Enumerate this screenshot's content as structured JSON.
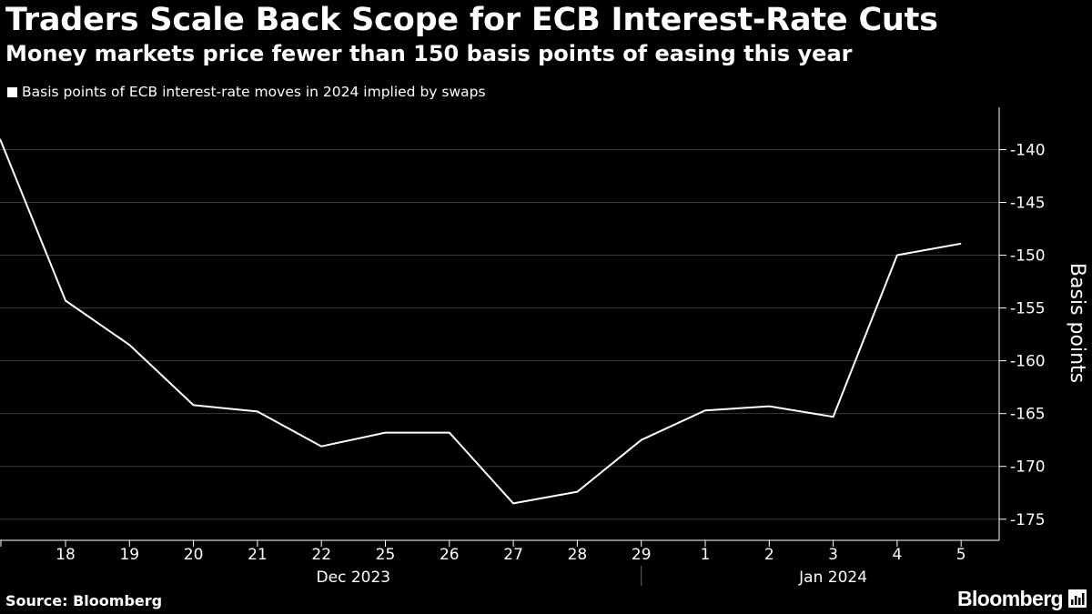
{
  "header": {
    "title": "Traders Scale Back Scope for ECB Interest-Rate Cuts",
    "subtitle": "Money markets price fewer than 150 basis points of easing this year"
  },
  "legend": {
    "label": "Basis points of ECB interest-rate moves in 2024 implied by swaps"
  },
  "footer": {
    "source": "Source: Bloomberg",
    "brand": "Bloomberg",
    "brand_icon": "chart-icon"
  },
  "colors": {
    "background": "#000000",
    "line": "#ffffff",
    "grid": "#3a3a3a",
    "text": "#ffffff"
  },
  "chart_data": {
    "type": "line",
    "title": "Traders Scale Back Scope for ECB Interest-Rate Cuts",
    "subtitle": "Money markets price fewer than 150 basis points of easing this year",
    "ylabel": "Basis points",
    "xlabel": "",
    "ylim": [
      -177,
      -136
    ],
    "yticks": [
      -140,
      -145,
      -150,
      -155,
      -160,
      -165,
      -170,
      -175
    ],
    "ytick_labels": [
      "-140",
      "-145",
      "-150",
      "-155",
      "-160",
      "-165",
      "-170",
      "-175"
    ],
    "grid": true,
    "legend_position": "top-left",
    "categories": [
      "18",
      "19",
      "20",
      "21",
      "22",
      "25",
      "26",
      "27",
      "28",
      "29",
      "1",
      "2",
      "3",
      "4",
      "5"
    ],
    "month_groups": [
      {
        "label": "Dec 2023",
        "from": 0,
        "to": 9
      },
      {
        "label": "Jan 2024",
        "from": 10,
        "to": 14
      }
    ],
    "series": [
      {
        "name": "Basis points of ECB interest-rate moves in 2024 implied by swaps",
        "start_value": -139.0,
        "values": [
          -154.3,
          -158.5,
          -164.2,
          -164.8,
          -168.1,
          -166.8,
          -166.8,
          -173.5,
          -172.4,
          -167.5,
          -164.7,
          -164.3,
          -165.3,
          -150.0,
          -148.9
        ]
      }
    ]
  }
}
